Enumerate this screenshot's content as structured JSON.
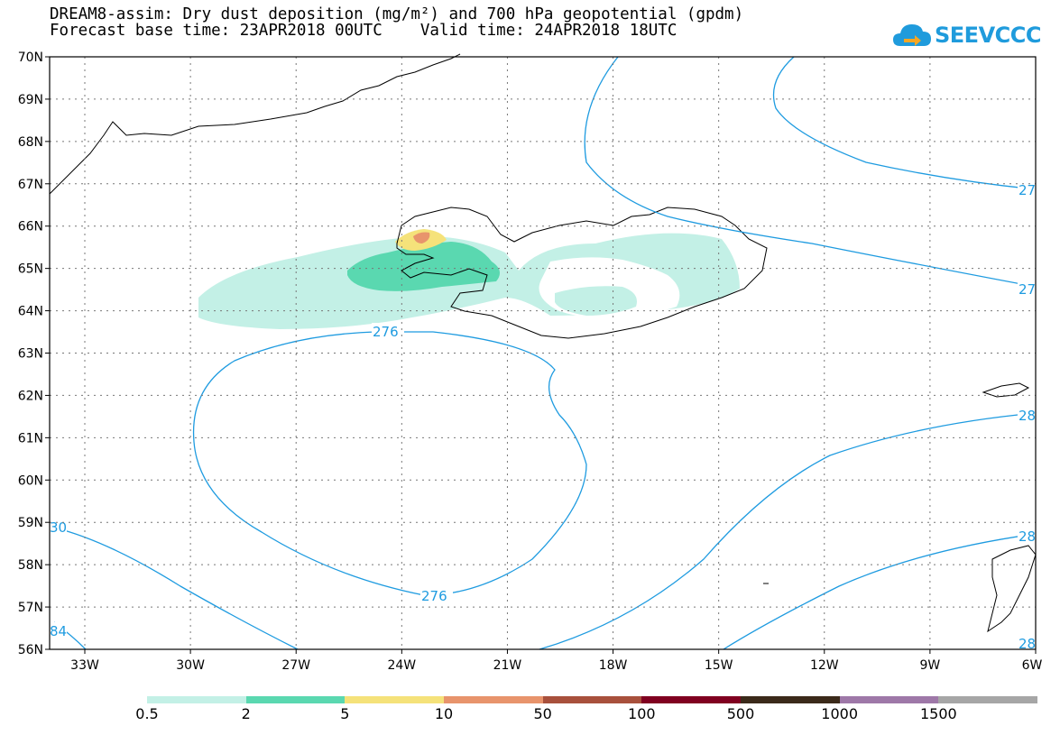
{
  "header": {
    "title_line1": "DREAM8-assim: Dry dust deposition (mg/m²) and 700 hPa geopotential (gpdm)",
    "title_line2": "Forecast base time: 23APR2018 00UTC    Valid time: 24APR2018 18UTC"
  },
  "logo": {
    "text": "SEEVCCC",
    "colors": {
      "cloud": "#1f9bdc",
      "arrow": "#f5a623"
    }
  },
  "map": {
    "lat_labels": [
      "70N",
      "69N",
      "68N",
      "67N",
      "66N",
      "65N",
      "64N",
      "63N",
      "62N",
      "61N",
      "60N",
      "59N",
      "58N",
      "57N",
      "56N"
    ],
    "lon_labels": [
      "33W",
      "30W",
      "27W",
      "24W",
      "21W",
      "18W",
      "15W",
      "12W",
      "9W",
      "6W"
    ],
    "contour_labels": [
      "276",
      "276",
      "27",
      "27",
      "28",
      "28",
      "30",
      "84",
      "28"
    ],
    "contour_color": "#1e9be0",
    "coast_color": "#000000",
    "deposition_colors": [
      "#c3f0e6",
      "#5ad8b0",
      "#f5e27a",
      "#e8946c"
    ]
  },
  "colorbar": {
    "labels": [
      "0.5",
      "2",
      "5",
      "10",
      "50",
      "100",
      "500",
      "1000",
      "1500"
    ],
    "colors": [
      "#c3f0e6",
      "#5ad8b0",
      "#f5e27a",
      "#e8946c",
      "#a8503c",
      "#800020",
      "#3b2a1a",
      "#9e78a8",
      "#a6a6a6"
    ]
  }
}
